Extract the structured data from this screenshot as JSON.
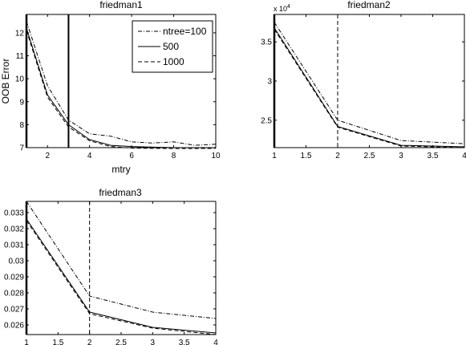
{
  "chart_data": [
    {
      "type": "line",
      "title": "friedman1",
      "xlabel": "mtry",
      "ylabel": "OOB Error",
      "xlim": [
        1,
        10
      ],
      "ylim": [
        7,
        12.8
      ],
      "xticks": [
        2,
        4,
        6,
        8,
        10
      ],
      "yticks": [
        7,
        8,
        9,
        10,
        11,
        12
      ],
      "vline_x": 3,
      "vline_style": "solid",
      "x": [
        1,
        2,
        3,
        4,
        5,
        6,
        7,
        8,
        9,
        10
      ],
      "series": [
        {
          "name": "ntree=100",
          "dash": "dashdot",
          "values": [
            12.5,
            9.7,
            8.2,
            7.6,
            7.5,
            7.25,
            7.2,
            7.25,
            7.1,
            7.15
          ]
        },
        {
          "name": "500",
          "dash": "solid",
          "values": [
            12.2,
            9.3,
            8.0,
            7.35,
            7.1,
            7.05,
            7.02,
            7.0,
            7.0,
            7.0
          ]
        },
        {
          "name": "1000",
          "dash": "dashed",
          "values": [
            12.1,
            9.2,
            7.9,
            7.3,
            7.05,
            6.98,
            6.97,
            6.96,
            6.96,
            6.97
          ]
        }
      ],
      "legend": "top-right",
      "grid": false
    },
    {
      "type": "line",
      "title": "friedman2",
      "xlabel": "",
      "ylabel": "",
      "y_multiplier": "x 10",
      "y_multiplier_exp": "4",
      "xlim": [
        1,
        4
      ],
      "ylim": [
        2.15,
        3.85
      ],
      "xticks": [
        1,
        1.5,
        2,
        2.5,
        3,
        3.5,
        4
      ],
      "yticks": [
        2.5,
        3,
        3.5
      ],
      "vline_x": 2,
      "vline_style": "dashed",
      "x": [
        1,
        2,
        3,
        4
      ],
      "series": [
        {
          "dash": "dashdot",
          "values": [
            3.75,
            2.5,
            2.24,
            2.2
          ]
        },
        {
          "dash": "solid",
          "values": [
            3.68,
            2.42,
            2.18,
            2.16
          ]
        },
        {
          "dash": "dashed",
          "values": [
            3.66,
            2.41,
            2.17,
            2.15
          ]
        }
      ],
      "grid": false
    },
    {
      "type": "line",
      "title": "friedman3",
      "xlabel": "",
      "ylabel": "",
      "xlim": [
        1,
        4
      ],
      "ylim": [
        0.0254,
        0.0337
      ],
      "xticks": [
        1,
        1.5,
        2,
        2.5,
        3,
        3.5,
        4
      ],
      "yticks": [
        0.026,
        0.027,
        0.028,
        0.029,
        0.03,
        0.031,
        0.032,
        0.033
      ],
      "vline_x": 2,
      "vline_style": "dashed",
      "x": [
        1,
        2,
        3,
        4
      ],
      "series": [
        {
          "dash": "dashdot",
          "values": [
            0.0337,
            0.0278,
            0.0268,
            0.0264
          ]
        },
        {
          "dash": "solid",
          "values": [
            0.0326,
            0.0268,
            0.02585,
            0.0255
          ]
        },
        {
          "dash": "dashed",
          "values": [
            0.0325,
            0.0267,
            0.0258,
            0.0254
          ]
        }
      ],
      "grid": false
    }
  ]
}
